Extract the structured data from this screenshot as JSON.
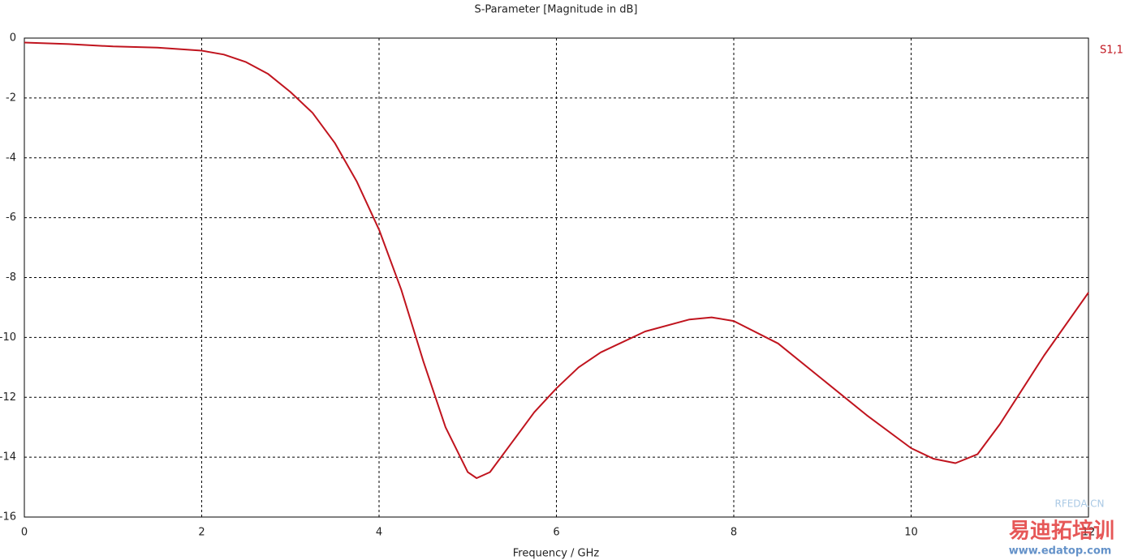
{
  "chart_data": {
    "type": "line",
    "title": "S-Parameter [Magnitude in dB]",
    "x_label": "Frequency / GHz",
    "x": [
      0,
      0.5,
      1,
      1.5,
      2,
      2.25,
      2.5,
      2.75,
      3,
      3.25,
      3.5,
      3.75,
      4,
      4.25,
      4.5,
      4.75,
      5,
      5.1,
      5.25,
      5.5,
      5.75,
      6,
      6.25,
      6.5,
      7,
      7.5,
      7.75,
      8,
      8.5,
      9,
      9.5,
      10,
      10.25,
      10.5,
      10.75,
      11,
      11.5,
      12
    ],
    "series": [
      {
        "name": "S1,1",
        "color": "#c0141e",
        "values": [
          -0.15,
          -0.2,
          -0.28,
          -0.32,
          -0.42,
          -0.55,
          -0.8,
          -1.2,
          -1.8,
          -2.5,
          -3.5,
          -4.8,
          -6.4,
          -8.4,
          -10.8,
          -13.0,
          -14.5,
          -14.7,
          -14.5,
          -13.5,
          -12.5,
          -11.7,
          -11.0,
          -10.5,
          -9.8,
          -9.4,
          -9.33,
          -9.45,
          -10.2,
          -11.4,
          -12.6,
          -13.7,
          -14.05,
          -14.2,
          -13.9,
          -12.9,
          -10.6,
          -8.5
        ]
      }
    ],
    "xlim": [
      0,
      12
    ],
    "xticks": [
      0,
      2,
      4,
      6,
      8,
      10,
      12
    ],
    "ylim": [
      -16,
      0
    ],
    "yticks": [
      -16,
      -14,
      -12,
      -10,
      -8,
      -6,
      -4,
      -2,
      0
    ],
    "grid": true,
    "legend": "right",
    "watermarks": [
      "RFEDA.CN",
      "易迪拓培训",
      "www.edatop.com"
    ]
  }
}
